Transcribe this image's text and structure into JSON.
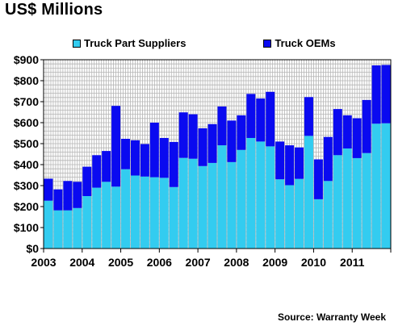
{
  "title": "US$ Millions",
  "source": "Source: Warranty Week",
  "chart_data": {
    "type": "bar",
    "stacked": true,
    "title": "US$ Millions",
    "xlabel": "",
    "ylabel": "",
    "ylim": [
      0,
      900
    ],
    "yticks": [
      "$0",
      "$100",
      "$200",
      "$300",
      "$400",
      "$500",
      "$600",
      "$700",
      "$800",
      "$900"
    ],
    "xtick_labels": [
      "2003",
      "2004",
      "2005",
      "2006",
      "2007",
      "2008",
      "2009",
      "2010",
      "2011"
    ],
    "grid": true,
    "legend_position": "top",
    "categories": [
      "2003 Q1",
      "2003 Q2",
      "2003 Q3",
      "2003 Q4",
      "2004 Q1",
      "2004 Q2",
      "2004 Q3",
      "2004 Q4",
      "2005 Q1",
      "2005 Q2",
      "2005 Q3",
      "2005 Q4",
      "2006 Q1",
      "2006 Q2",
      "2006 Q3",
      "2006 Q4",
      "2007 Q1",
      "2007 Q2",
      "2007 Q3",
      "2007 Q4",
      "2008 Q1",
      "2008 Q2",
      "2008 Q3",
      "2008 Q4",
      "2009 Q1",
      "2009 Q2",
      "2009 Q3",
      "2009 Q4",
      "2010 Q1",
      "2010 Q2",
      "2010 Q3",
      "2010 Q4",
      "2011 Q1",
      "2011 Q2",
      "2011 Q3",
      "2011 Q4"
    ],
    "series": [
      {
        "name": "Truck Part Suppliers",
        "color": "#33ccf0",
        "values": [
          228,
          182,
          182,
          193,
          250,
          290,
          318,
          295,
          378,
          348,
          343,
          340,
          337,
          293,
          432,
          428,
          393,
          408,
          492,
          412,
          470,
          527,
          510,
          487,
          330,
          302,
          332,
          537,
          235,
          322,
          445,
          477,
          431,
          455,
          595,
          597
        ]
      },
      {
        "name": "Truck OEMs",
        "color": "#0a0af0",
        "values": [
          105,
          100,
          140,
          125,
          140,
          155,
          147,
          385,
          145,
          168,
          155,
          260,
          190,
          215,
          217,
          212,
          180,
          185,
          185,
          198,
          165,
          210,
          205,
          260,
          180,
          190,
          150,
          185,
          190,
          210,
          220,
          158,
          190,
          253,
          278,
          278
        ]
      }
    ]
  }
}
